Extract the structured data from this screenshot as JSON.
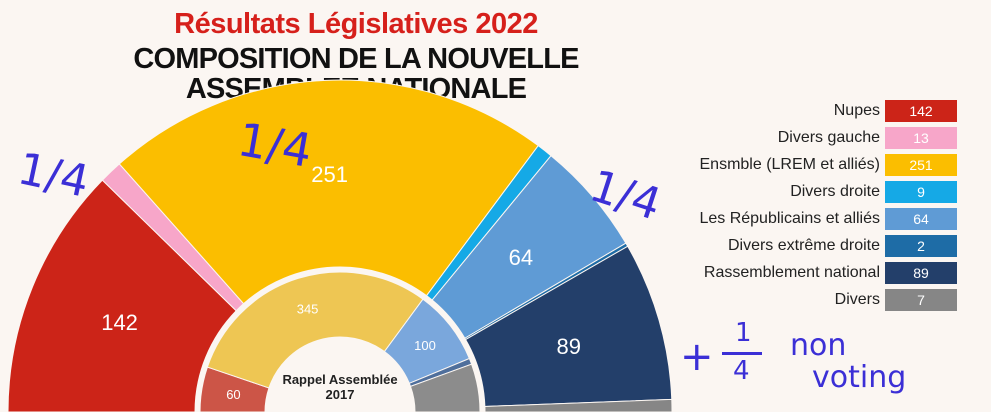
{
  "title": {
    "line1": "Résultats Législatives 2022",
    "line2": "COMPOSITION DE LA NOUVELLE",
    "line3": "ASSEMBLEE NATIONALE"
  },
  "chart_data": {
    "type": "pie",
    "subtype": "semicircle-parliament",
    "title": "COMPOSITION DE LA NOUVELLE ASSEMBLEE NATIONALE",
    "series": [
      {
        "name": "2022",
        "slices": [
          {
            "label": "Nupes",
            "value": 142,
            "color": "#cc2418",
            "show_value": true
          },
          {
            "label": "Divers gauche",
            "value": 13,
            "color": "#f7a6c9",
            "show_value": false
          },
          {
            "label": "Ensmble (LREM et alliés)",
            "value": 251,
            "color": "#fbbe00",
            "show_value": true
          },
          {
            "label": "Divers droite",
            "value": 9,
            "color": "#15a9e6",
            "show_value": false
          },
          {
            "label": "Les Républicains et alliés",
            "value": 64,
            "color": "#5f9bd5",
            "show_value": true
          },
          {
            "label": "Divers extrême droite",
            "value": 2,
            "color": "#1e6ca6",
            "show_value": false
          },
          {
            "label": "Rassemblement national",
            "value": 89,
            "color": "#233f6a",
            "show_value": true
          },
          {
            "label": "Divers",
            "value": 7,
            "color": "#868686",
            "show_value": false
          }
        ]
      },
      {
        "name": "2017",
        "label": "Rappel Assemblée 2017",
        "slices": [
          {
            "label": "",
            "value": 60,
            "color": "#cc5547",
            "show_value": true
          },
          {
            "label": "",
            "value": 345,
            "color": "#eec653",
            "show_value": true
          },
          {
            "label": "",
            "value": 100,
            "color": "#7aa7dc",
            "show_value": true
          },
          {
            "label": "",
            "value": 8,
            "color": "#4f6f9c",
            "show_value": false
          },
          {
            "label": "",
            "value": 64,
            "color": "#8c8c8c",
            "show_value": false
          }
        ]
      }
    ],
    "legend": [
      {
        "label": "Nupes",
        "value": "142",
        "color": "#cc2418"
      },
      {
        "label": "Divers gauche",
        "value": "13",
        "color": "#f7a6c9"
      },
      {
        "label": "Ensmble (LREM et alliés)",
        "value": "251",
        "color": "#fbbe00"
      },
      {
        "label": "Divers droite",
        "value": "9",
        "color": "#15a9e6"
      },
      {
        "label": "Les Républicains et alliés",
        "value": "64",
        "color": "#5f9bd5"
      },
      {
        "label": "Divers extrême droite",
        "value": "2",
        "color": "#1e6ca6"
      },
      {
        "label": "Rassemblement national",
        "value": "89",
        "color": "#233f6a"
      },
      {
        "label": "Divers",
        "value": "7",
        "color": "#868686"
      }
    ],
    "inner_label_line1": "Rappel Assemblée",
    "inner_label_line2": "2017",
    "legend_position": "right"
  },
  "annotations": {
    "quarter": "1/4",
    "plus": "+",
    "frac_num": "1",
    "frac_den": "4",
    "non": "non",
    "voting": "voting",
    "color": "#3b2fd6"
  }
}
